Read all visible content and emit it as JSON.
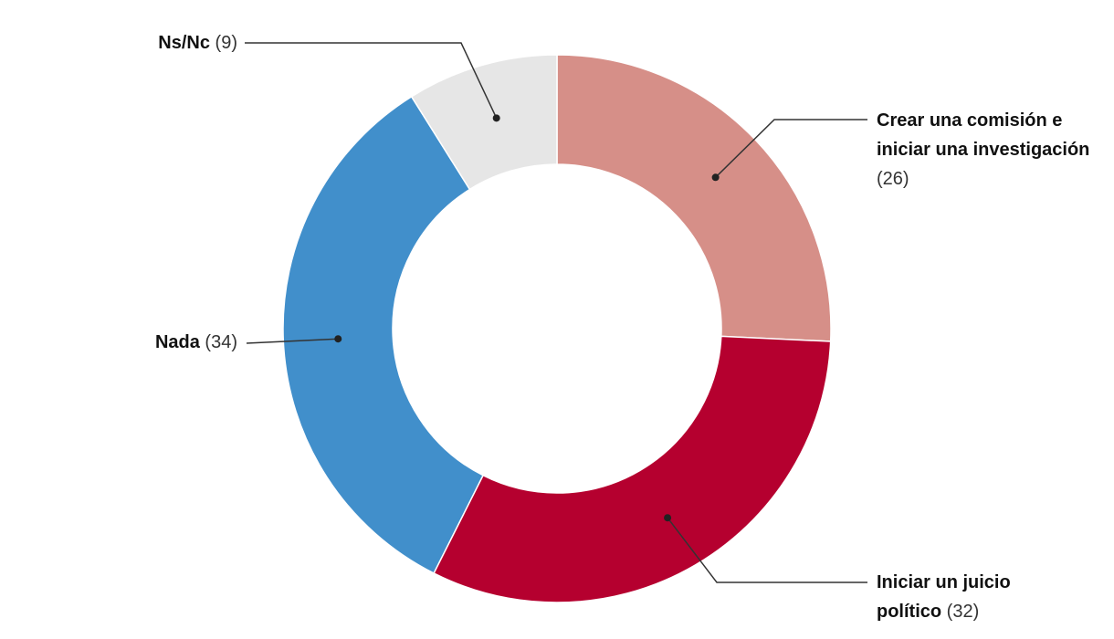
{
  "chart_data": {
    "type": "donut",
    "categories": [
      "Crear una comisión e iniciar una investigación",
      "Iniciar un juicio político",
      "Nada",
      "Ns/Nc"
    ],
    "values": [
      26,
      32,
      34,
      9
    ],
    "value_labels": [
      "(26)",
      "(32)",
      "(34)",
      "(9)"
    ],
    "colors": [
      "#d68f88",
      "#b5002f",
      "#418fcb",
      "#e6e6e6"
    ]
  }
}
